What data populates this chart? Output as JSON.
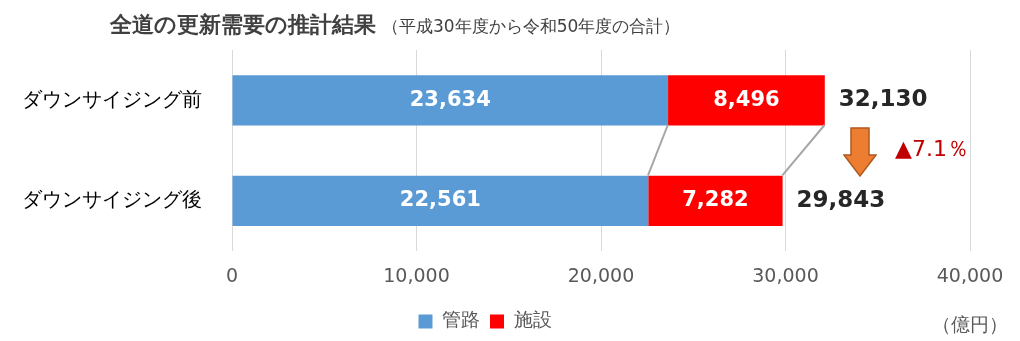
{
  "chart_data": {
    "type": "bar",
    "orientation": "horizontal",
    "stacked": true,
    "title": "全道の更新需要の推計結果",
    "subtitle": "（平成30年度から令和50年度の合計）",
    "xlabel": "（億円）",
    "categories": [
      "ダウンサイジング前",
      "ダウンサイジング後"
    ],
    "series": [
      {
        "name": "管路",
        "color": "#5b9bd5",
        "values": [
          23634,
          22561
        ],
        "value_labels": [
          "23,634",
          "22,561"
        ]
      },
      {
        "name": "施設",
        "color": "#ff0000",
        "values": [
          8496,
          7282
        ],
        "value_labels": [
          "8,496",
          "7,282"
        ]
      }
    ],
    "totals": [
      "32,130",
      "29,843"
    ],
    "annotations": [
      "▲7.1％"
    ],
    "xlim": [
      0,
      40000
    ],
    "xticks": [
      {
        "value": 0,
        "label": "0"
      },
      {
        "value": 10000,
        "label": "10,000"
      },
      {
        "value": 20000,
        "label": "20,000"
      },
      {
        "value": 30000,
        "label": "30,000"
      },
      {
        "value": 40000,
        "label": "40,000"
      }
    ],
    "grid": "x",
    "legend": "bottom"
  }
}
